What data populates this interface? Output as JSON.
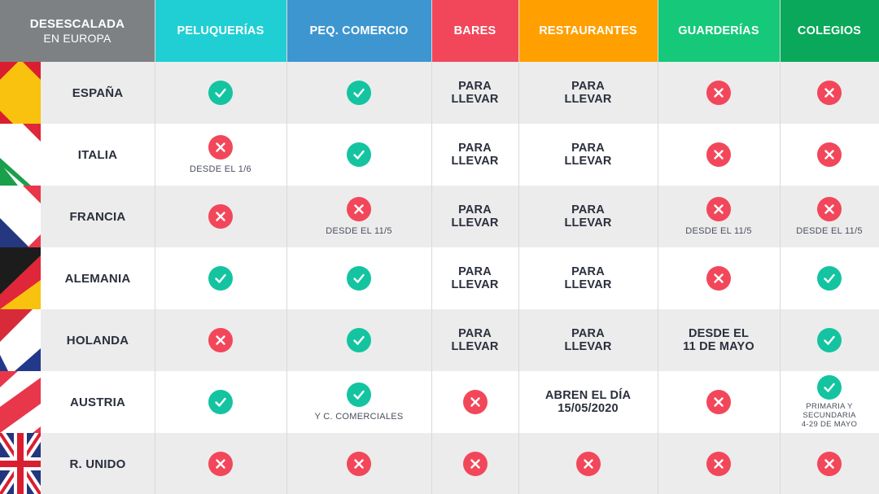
{
  "header": {
    "title_line1": "DESESCALADA",
    "title_line2": "EN EUROPA",
    "columns": [
      {
        "label": "PELUQUERÍAS",
        "color": "#1fcfd3"
      },
      {
        "label": "PEQ. COMERCIO",
        "color": "#3e96d1"
      },
      {
        "label": "BARES",
        "color": "#f2475a"
      },
      {
        "label": "RESTAURANTES",
        "color": "#ffa000"
      },
      {
        "label": "GUARDERÍAS",
        "color": "#16c97a"
      },
      {
        "label": "COLEGIOS",
        "color": "#0aa85a"
      }
    ]
  },
  "rows": [
    {
      "country": "ESPAÑA",
      "flag": "spain",
      "cells": [
        {
          "status": "yes"
        },
        {
          "status": "yes"
        },
        {
          "text1": "PARA",
          "text2": "LLEVAR"
        },
        {
          "text1": "PARA",
          "text2": "LLEVAR"
        },
        {
          "status": "no"
        },
        {
          "status": "no"
        }
      ]
    },
    {
      "country": "ITALIA",
      "flag": "italy",
      "cells": [
        {
          "status": "no",
          "note": "DESDE EL 1/6"
        },
        {
          "status": "yes"
        },
        {
          "text1": "PARA",
          "text2": "LLEVAR"
        },
        {
          "text1": "PARA",
          "text2": "LLEVAR"
        },
        {
          "status": "no"
        },
        {
          "status": "no"
        }
      ]
    },
    {
      "country": "FRANCIA",
      "flag": "france",
      "cells": [
        {
          "status": "no"
        },
        {
          "status": "no",
          "note": "DESDE EL 11/5"
        },
        {
          "text1": "PARA",
          "text2": "LLEVAR"
        },
        {
          "text1": "PARA",
          "text2": "LLEVAR"
        },
        {
          "status": "no",
          "note": "DESDE EL 11/5"
        },
        {
          "status": "no",
          "note": "DESDE EL 11/5"
        }
      ]
    },
    {
      "country": "ALEMANIA",
      "flag": "germany",
      "cells": [
        {
          "status": "yes"
        },
        {
          "status": "yes"
        },
        {
          "text1": "PARA",
          "text2": "LLEVAR"
        },
        {
          "text1": "PARA",
          "text2": "LLEVAR"
        },
        {
          "status": "no"
        },
        {
          "status": "yes"
        }
      ]
    },
    {
      "country": "HOLANDA",
      "flag": "netherlands",
      "cells": [
        {
          "status": "no"
        },
        {
          "status": "yes"
        },
        {
          "text1": "PARA",
          "text2": "LLEVAR"
        },
        {
          "text1": "PARA",
          "text2": "LLEVAR"
        },
        {
          "text1": "DESDE EL",
          "text2": "11 DE MAYO"
        },
        {
          "status": "yes"
        }
      ]
    },
    {
      "country": "AUSTRIA",
      "flag": "austria",
      "cells": [
        {
          "status": "yes"
        },
        {
          "status": "yes",
          "note": "Y C. COMERCIALES"
        },
        {
          "status": "no"
        },
        {
          "text1": "ABREN EL DÍA",
          "text2": "15/05/2020"
        },
        {
          "status": "no"
        },
        {
          "status": "yes",
          "note1": "PRIMARIA Y",
          "note2": "SECUNDARIA",
          "note3": "4-29 DE MAYO"
        }
      ]
    },
    {
      "country": "R. UNIDO",
      "flag": "uk",
      "cells": [
        {
          "status": "no"
        },
        {
          "status": "no"
        },
        {
          "status": "no"
        },
        {
          "status": "no"
        },
        {
          "status": "no"
        },
        {
          "status": "no"
        }
      ]
    }
  ],
  "colors": {
    "yes": "#14c4a0",
    "no": "#f2475a",
    "row_alt": "#ececec",
    "title_bg": "#7e8184"
  },
  "icons": {
    "yes": "check-icon",
    "no": "cross-icon"
  }
}
